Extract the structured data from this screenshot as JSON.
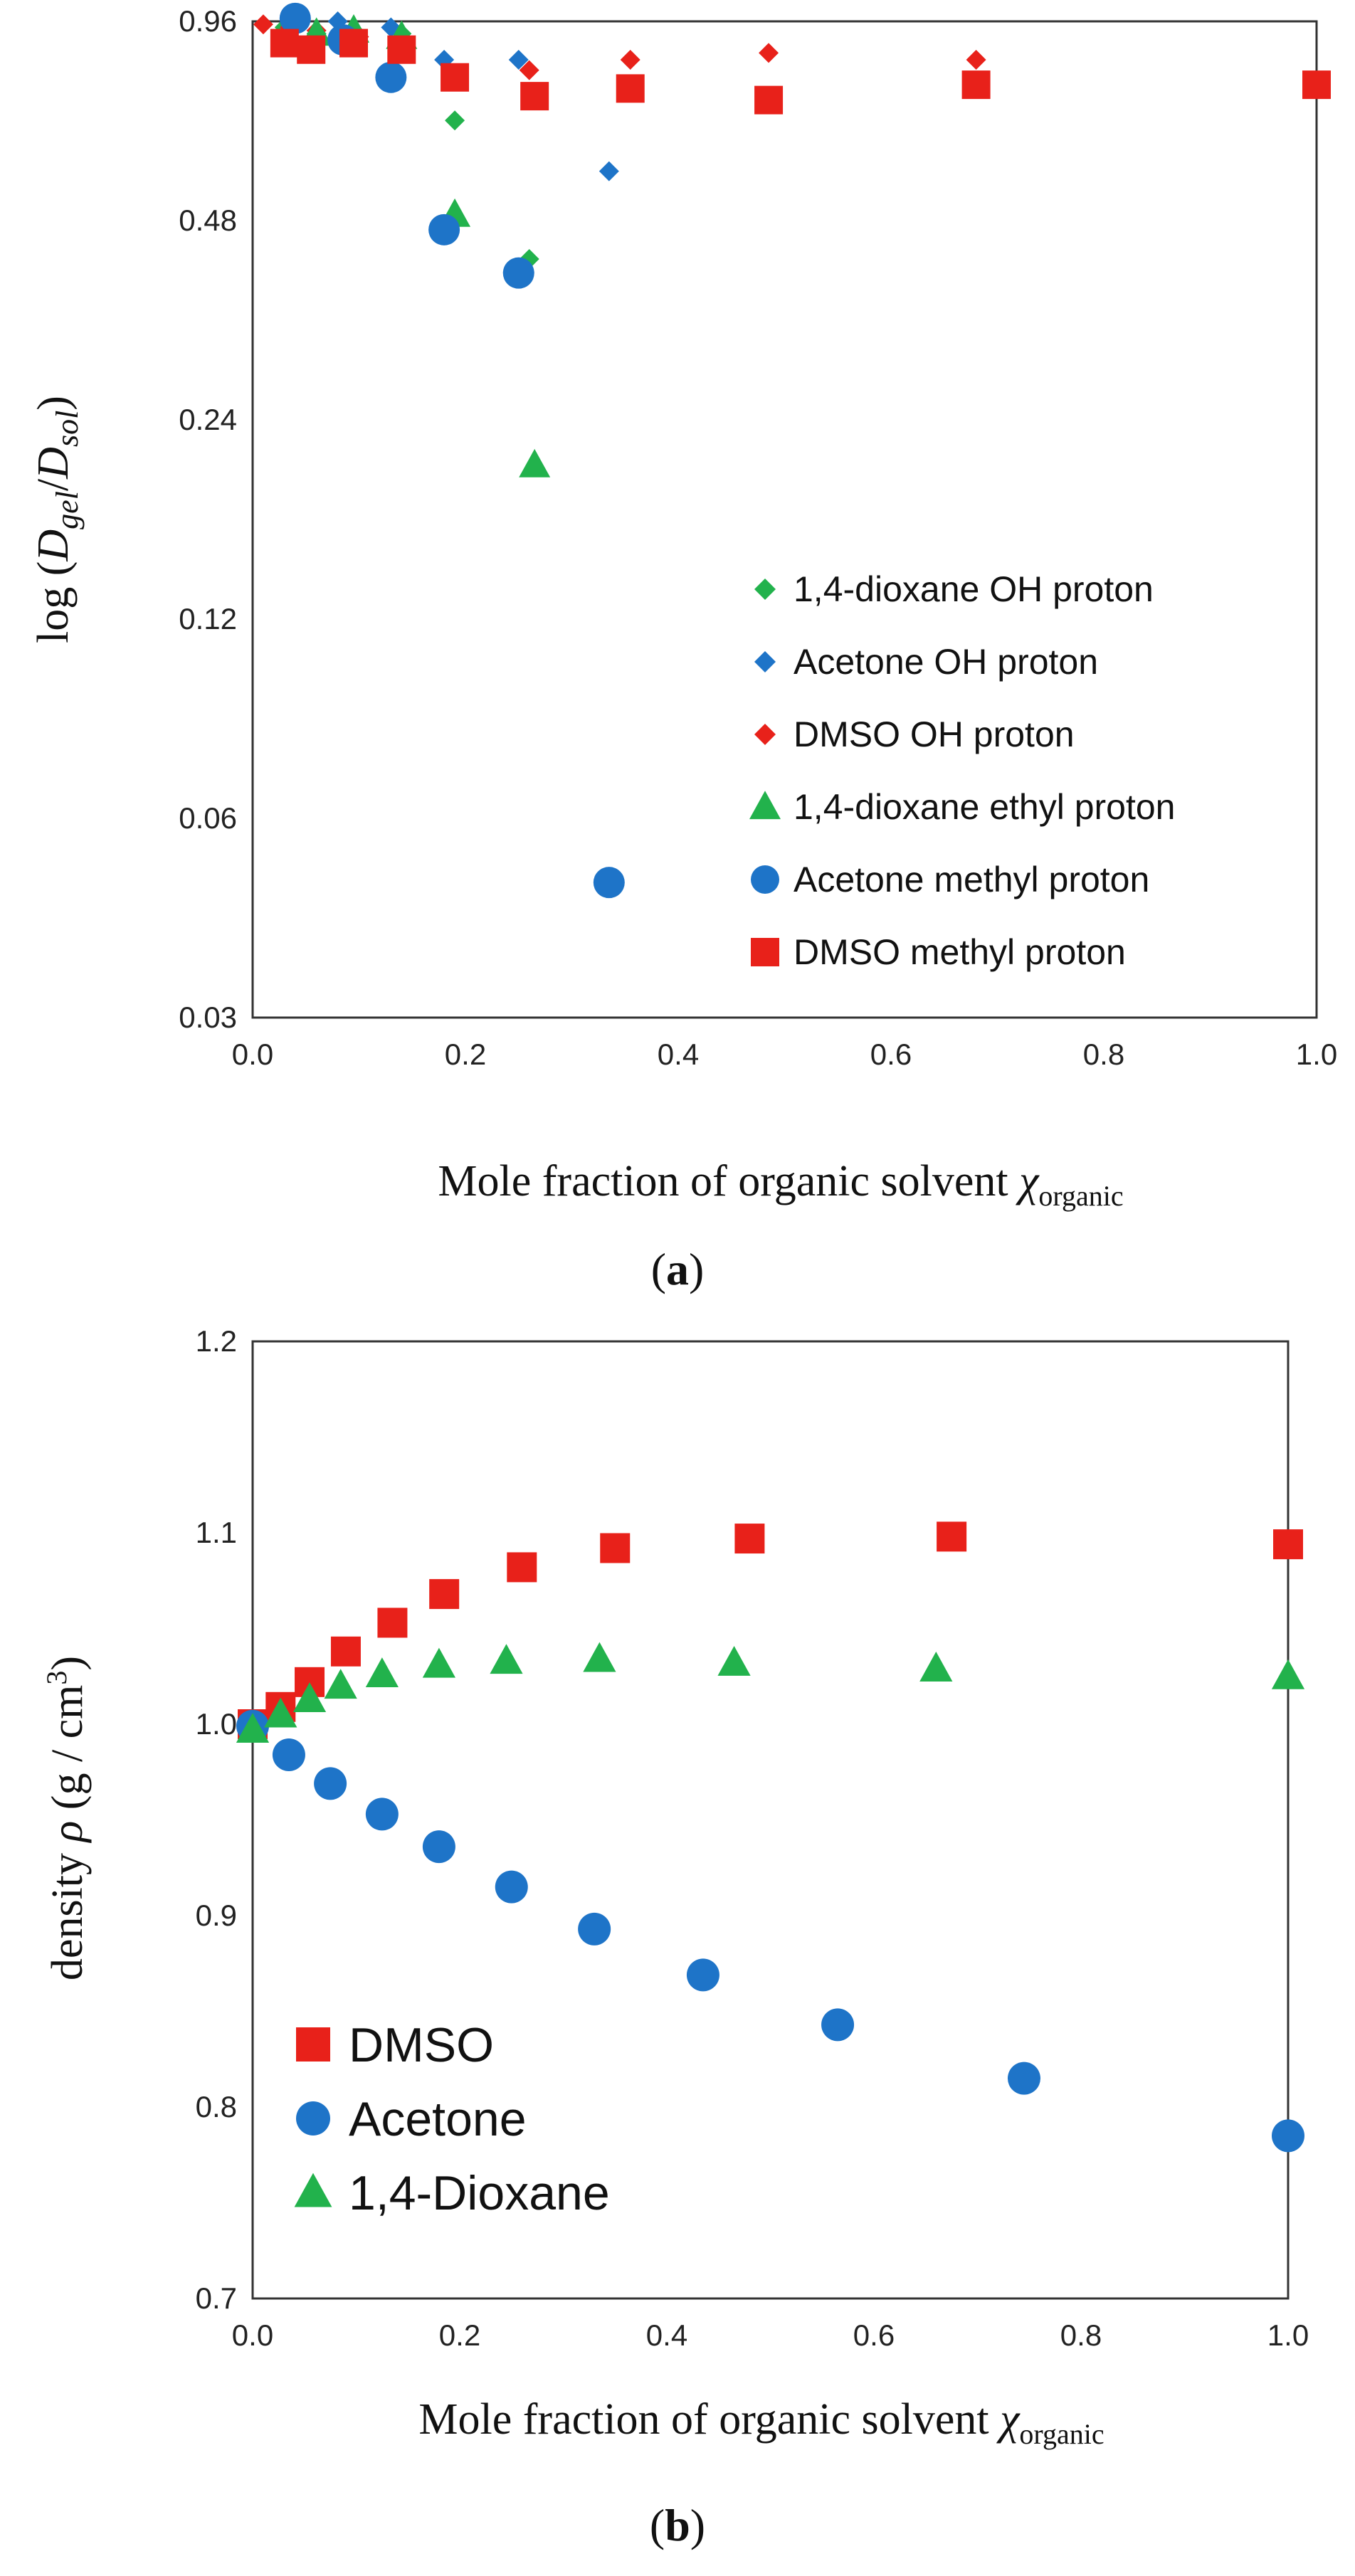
{
  "chart_data": [
    {
      "type": "scatter",
      "panel_label": "a",
      "ylabel": "log (D_gel/D_sol)",
      "xlabel": "Mole fraction of organic solvent χ_organic",
      "xlim": [
        0,
        1.0
      ],
      "ylim": [
        0.03,
        0.96
      ],
      "y_scale": "log",
      "xticks": [
        "0.0",
        "0.2",
        "0.4",
        "0.6",
        "0.8",
        "1.0"
      ],
      "yticks": [
        "0.96",
        "0.48",
        "0.24",
        "0.12",
        "0.06",
        "0.03"
      ],
      "legend_position": "lower-right inside",
      "series": [
        {
          "name": "1,4-dioxane OH proton",
          "marker": "diamond",
          "color": "#22b24c",
          "x": [
            0.03,
            0.06,
            0.095,
            0.14,
            0.19,
            0.26
          ],
          "y": [
            0.94,
            0.92,
            0.93,
            0.92,
            0.68,
            0.42
          ]
        },
        {
          "name": "Acetone OH proton",
          "marker": "diamond",
          "color": "#1e74c8",
          "x": [
            0.045,
            0.08,
            0.13,
            0.18,
            0.25,
            0.335
          ],
          "y": [
            0.96,
            0.96,
            0.94,
            0.84,
            0.84,
            0.57
          ]
        },
        {
          "name": "DMSO OH proton",
          "marker": "diamond",
          "color": "#e8211a",
          "x": [
            0.01,
            0.035,
            0.06,
            0.1,
            0.26,
            0.355,
            0.485,
            0.68
          ],
          "y": [
            0.95,
            0.94,
            0.93,
            0.91,
            0.81,
            0.84,
            0.86,
            0.84
          ]
        },
        {
          "name": "1,4-dioxane ethyl proton",
          "marker": "triangle",
          "color": "#22b24c",
          "x": [
            0.035,
            0.06,
            0.095,
            0.14,
            0.19,
            0.265
          ],
          "y": [
            0.91,
            0.92,
            0.93,
            0.91,
            0.49,
            0.205
          ]
        },
        {
          "name": "Acetone methyl proton",
          "marker": "circle",
          "color": "#1e74c8",
          "x": [
            0.04,
            0.085,
            0.13,
            0.18,
            0.25,
            0.335
          ],
          "y": [
            0.97,
            0.9,
            0.79,
            0.465,
            0.4,
            0.048
          ]
        },
        {
          "name": "DMSO methyl proton",
          "marker": "square",
          "color": "#e8211a",
          "x": [
            0.03,
            0.055,
            0.095,
            0.14,
            0.19,
            0.265,
            0.355,
            0.485,
            0.68,
            1.0
          ],
          "y": [
            0.89,
            0.87,
            0.89,
            0.87,
            0.79,
            0.74,
            0.76,
            0.73,
            0.77,
            0.77
          ]
        }
      ]
    },
    {
      "type": "scatter",
      "panel_label": "b",
      "ylabel": "density ρ (g / cm3)",
      "xlabel": "Mole fraction of organic solvent χ_organic",
      "xlim": [
        0,
        1.0
      ],
      "ylim": [
        0.7,
        1.2
      ],
      "xticks": [
        "0.0",
        "0.2",
        "0.4",
        "0.6",
        "0.8",
        "1.0"
      ],
      "yticks": [
        "1.2",
        "1.1",
        "1.0",
        "0.9",
        "0.8",
        "0.7"
      ],
      "legend_position": "lower-left inside",
      "series": [
        {
          "name": "DMSO",
          "marker": "square",
          "color": "#e8211a",
          "x": [
            0.0,
            0.027,
            0.055,
            0.09,
            0.135,
            0.185,
            0.26,
            0.35,
            0.48,
            0.675,
            1.0
          ],
          "y": [
            1.0,
            1.009,
            1.022,
            1.038,
            1.053,
            1.068,
            1.082,
            1.092,
            1.097,
            1.098,
            1.094
          ]
        },
        {
          "name": "Acetone",
          "marker": "circle",
          "color": "#1e74c8",
          "x": [
            0.0,
            0.035,
            0.075,
            0.125,
            0.18,
            0.25,
            0.33,
            0.435,
            0.565,
            0.745,
            1.0
          ],
          "y": [
            0.999,
            0.984,
            0.969,
            0.953,
            0.936,
            0.915,
            0.893,
            0.869,
            0.843,
            0.815,
            0.785
          ]
        },
        {
          "name": "1,4-Dioxane",
          "marker": "triangle",
          "color": "#22b24c",
          "x": [
            0.0,
            0.027,
            0.055,
            0.085,
            0.125,
            0.18,
            0.245,
            0.335,
            0.465,
            0.66,
            1.0
          ],
          "y": [
            0.997,
            1.005,
            1.013,
            1.02,
            1.026,
            1.031,
            1.033,
            1.034,
            1.032,
            1.029,
            1.025
          ]
        }
      ]
    }
  ]
}
